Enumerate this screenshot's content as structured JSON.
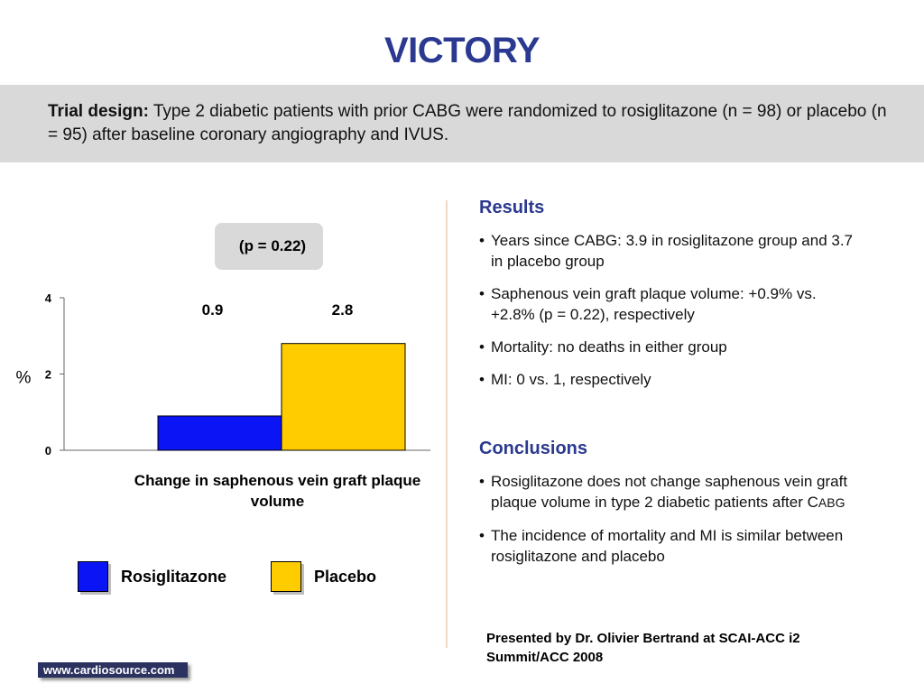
{
  "title": "VICTORY",
  "trial_design": {
    "label": "Trial design:",
    "text": "Type 2 diabetic patients with prior CABG were randomized to rosiglitazone (n = 98) or placebo (n = 95) after baseline coronary angiography and IVUS."
  },
  "p_value": "(p = 0.22)",
  "chart_data": {
    "type": "bar",
    "categories": [
      "Rosiglitazone",
      "Placebo"
    ],
    "values": [
      0.9,
      2.8
    ],
    "value_labels": [
      "0.9",
      "2.8"
    ],
    "colors": [
      "#0a14f5",
      "#ffcc00"
    ],
    "xlabel": "Change in saphenous vein graft plaque volume",
    "ylabel": "%",
    "ylim": [
      0,
      4
    ],
    "yticks": [
      0,
      2,
      4
    ],
    "grid": false,
    "legend": "bottom"
  },
  "legend": [
    {
      "label": "Rosiglitazone",
      "color": "#0a14f5"
    },
    {
      "label": "Placebo",
      "color": "#ffcc00"
    }
  ],
  "results": {
    "heading": "Results",
    "items": [
      "Years since CABG: 3.9 in rosiglitazone group and 3.7 in placebo group",
      "Saphenous vein graft plaque volume: +0.9% vs. +2.8% (p = 0.22), respectively",
      "Mortality: no deaths in either group",
      "MI: 0 vs. 1, respectively"
    ]
  },
  "conclusions": {
    "heading": "Conclusions",
    "item1_main": "Rosiglitazone does not change saphenous vein graft plaque volume in type 2 diabetic patients after C",
    "item1_small": "ABG",
    "item2": "The incidence of mortality and MI is similar between rosiglitazone and placebo"
  },
  "presented_by": "Presented by Dr. Olivier Bertrand at SCAI-ACC i2 Summit/ACC 2008",
  "site": "www.cardiosource.com"
}
